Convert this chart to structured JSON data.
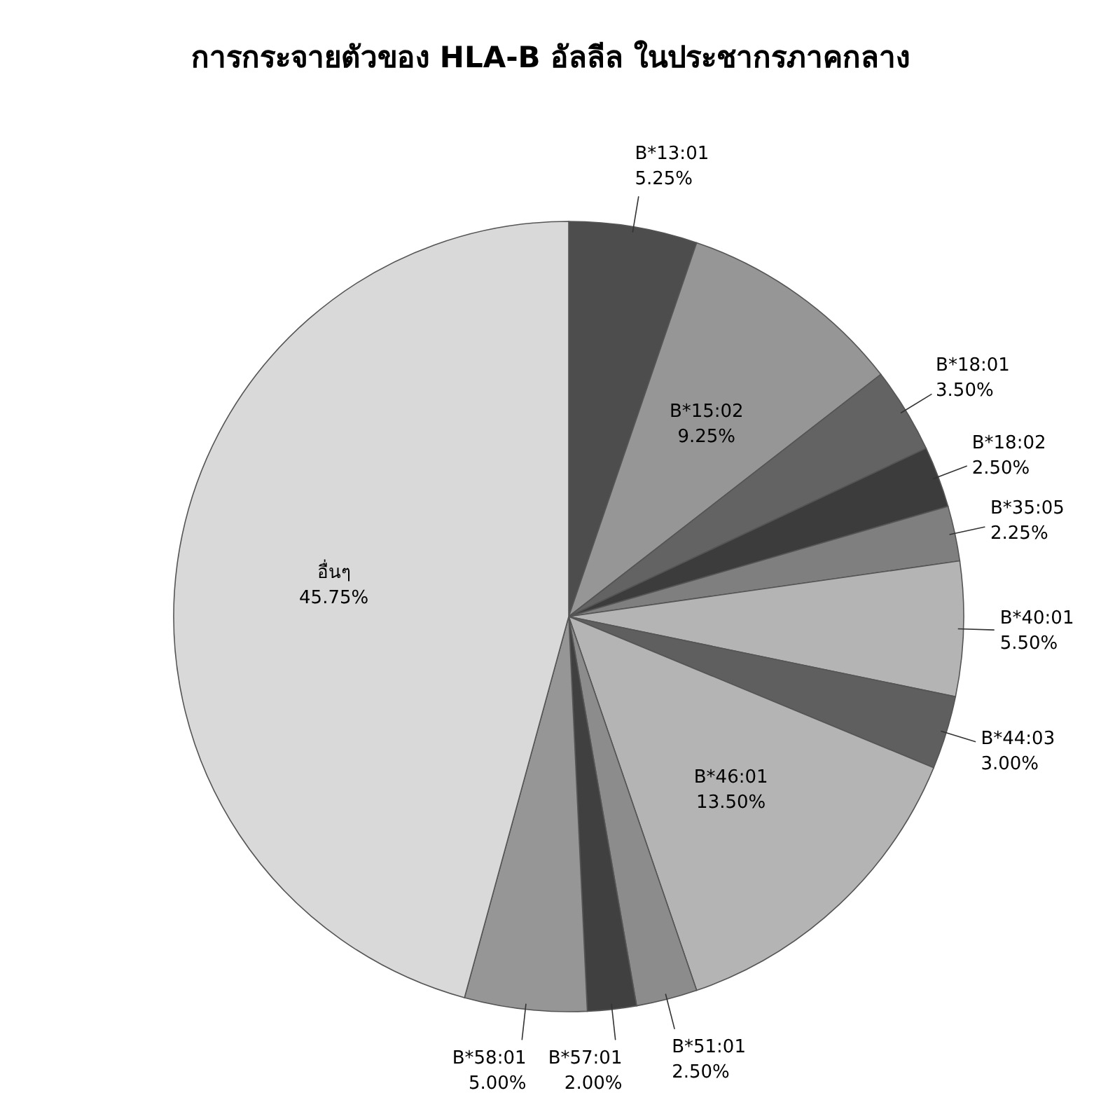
{
  "chart_data": {
    "type": "pie",
    "title": "การกระจายตัวของ HLA-B อัลลีล ในประชากรภาคกลาง",
    "categories": [
      "B*13:01",
      "B*15:02",
      "B*18:01",
      "B*18:02",
      "B*35:05",
      "B*40:01",
      "B*44:03",
      "B*46:01",
      "B*51:01",
      "B*57:01",
      "B*58:01",
      "อื่นๆ"
    ],
    "values": [
      5.25,
      9.25,
      3.5,
      2.5,
      2.25,
      5.5,
      3.0,
      13.5,
      2.5,
      2.0,
      5.0,
      45.75
    ],
    "value_labels": [
      "5.25%",
      "9.25%",
      "3.50%",
      "2.50%",
      "2.25%",
      "5.50%",
      "3.00%",
      "13.50%",
      "2.50%",
      "2.00%",
      "5.00%",
      "45.75%"
    ],
    "colors": [
      "#4d4d4d",
      "#969696",
      "#636363",
      "#3c3c3c",
      "#7f7f7f",
      "#b4b4b4",
      "#5f5f5f",
      "#b4b4b4",
      "#8c8c8c",
      "#404040",
      "#969696",
      "#d9d9d9"
    ]
  }
}
